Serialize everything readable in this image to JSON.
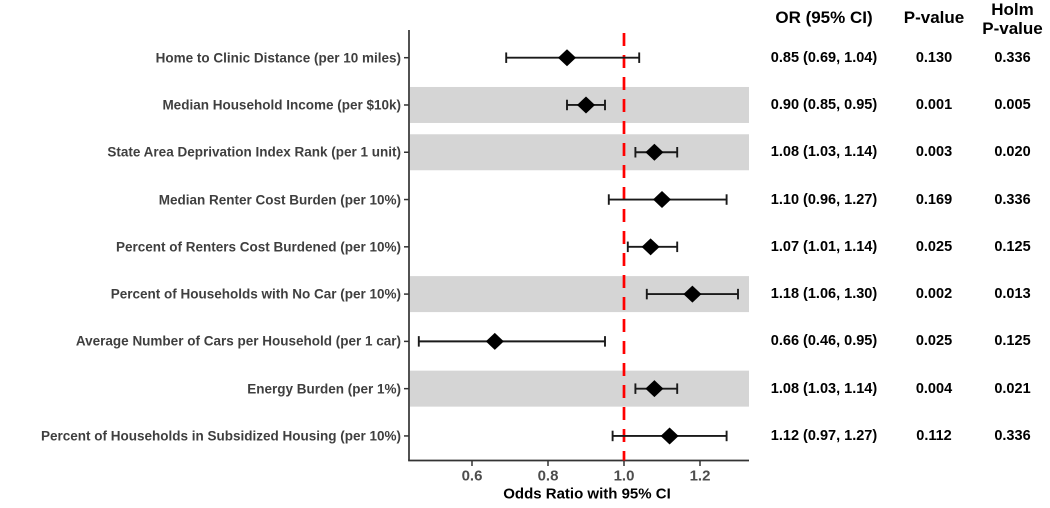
{
  "chart_data": {
    "type": "forest",
    "xlabel": "Odds Ratio with 95% CI",
    "x_ticks": [
      0.6,
      0.8,
      1.0,
      1.2
    ],
    "x_tick_labels": [
      "0.6",
      "0.8",
      "1.0",
      "1.2"
    ],
    "xlim": [
      0.43,
      1.33
    ],
    "reference_line": 1.0,
    "legend": "none",
    "grid": "off",
    "columns": {
      "or_ci": "OR (95% CI)",
      "p_value": "P-value",
      "holm_line1": "Holm",
      "holm_line2": "P-value"
    },
    "rows": [
      {
        "label": "Home to Clinic Distance (per 10 miles)",
        "or": 0.85,
        "ci_low": 0.69,
        "ci_high": 1.04,
        "or_ci": "0.85 (0.69, 1.04)",
        "p_value": "0.130",
        "holm_p": "0.336",
        "highlighted": false
      },
      {
        "label": "Median Household Income (per $10k)",
        "or": 0.9,
        "ci_low": 0.85,
        "ci_high": 0.95,
        "or_ci": "0.90 (0.85, 0.95)",
        "p_value": "0.001",
        "holm_p": "0.005",
        "highlighted": true
      },
      {
        "label": "State Area Deprivation Index Rank (per 1 unit)",
        "or": 1.08,
        "ci_low": 1.03,
        "ci_high": 1.14,
        "or_ci": "1.08 (1.03, 1.14)",
        "p_value": "0.003",
        "holm_p": "0.020",
        "highlighted": true
      },
      {
        "label": "Median Renter Cost Burden (per 10%)",
        "or": 1.1,
        "ci_low": 0.96,
        "ci_high": 1.27,
        "or_ci": "1.10 (0.96, 1.27)",
        "p_value": "0.169",
        "holm_p": "0.336",
        "highlighted": false
      },
      {
        "label": "Percent of Renters Cost Burdened (per 10%)",
        "or": 1.07,
        "ci_low": 1.01,
        "ci_high": 1.14,
        "or_ci": "1.07 (1.01, 1.14)",
        "p_value": "0.025",
        "holm_p": "0.125",
        "highlighted": false
      },
      {
        "label": "Percent of Households with No Car (per 10%)",
        "or": 1.18,
        "ci_low": 1.06,
        "ci_high": 1.3,
        "or_ci": "1.18 (1.06, 1.30)",
        "p_value": "0.002",
        "holm_p": "0.013",
        "highlighted": true
      },
      {
        "label": "Average Number of Cars per Household (per 1 car)",
        "or": 0.66,
        "ci_low": 0.46,
        "ci_high": 0.95,
        "or_ci": "0.66 (0.46, 0.95)",
        "p_value": "0.025",
        "holm_p": "0.125",
        "highlighted": false
      },
      {
        "label": "Energy Burden (per 1%)",
        "or": 1.08,
        "ci_low": 1.03,
        "ci_high": 1.14,
        "or_ci": "1.08 (1.03, 1.14)",
        "p_value": "0.004",
        "holm_p": "0.021",
        "highlighted": true
      },
      {
        "label": "Percent of Households in Subsidized Housing (per 10%)",
        "or": 1.12,
        "ci_low": 0.97,
        "ci_high": 1.27,
        "or_ci": "1.12 (0.97, 1.27)",
        "p_value": "0.112",
        "holm_p": "0.336",
        "highlighted": false
      }
    ],
    "colors": {
      "band": "#D5D5D5",
      "axis": "#333333",
      "marker": "#000000",
      "ci_line": "#1A1A1A",
      "ref_line": "#FF0000",
      "label_text": "#3F3F3F",
      "tick_text": "#4D4D4D"
    }
  }
}
